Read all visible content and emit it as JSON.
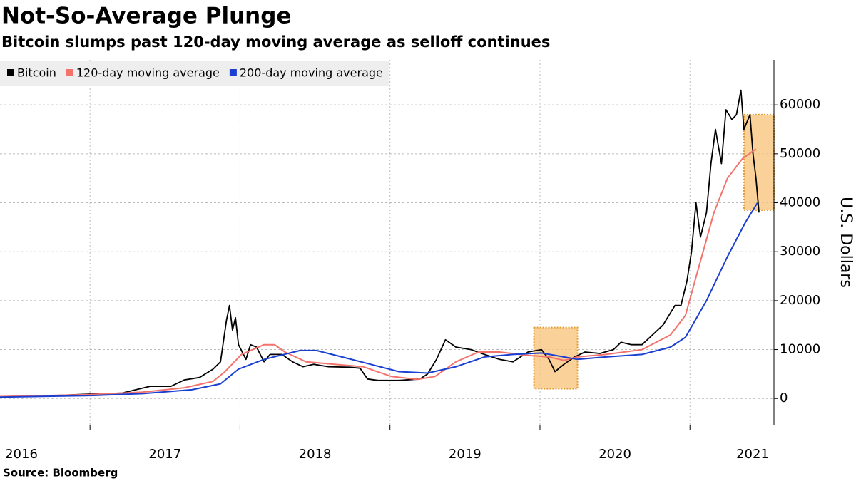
{
  "chart_data": {
    "type": "line",
    "title": "Not-So-Average Plunge",
    "subtitle": "Bitcoin slumps past 120-day moving average as selloff continues",
    "y_label": "U.S. Dollars",
    "source": "Source: Bloomberg",
    "xlim": [
      2016.4,
      2021.56
    ],
    "xticks": [
      2016,
      2017,
      2018,
      2019,
      2020,
      2021
    ],
    "ylim": [
      -5500,
      69200
    ],
    "yticks": [
      0,
      10000,
      20000,
      30000,
      40000,
      50000,
      60000
    ],
    "grid": true,
    "legend": "top-left",
    "highlights": [
      {
        "x": [
          2019.96,
          2020.25
        ],
        "y": [
          2000,
          14500
        ]
      },
      {
        "x": [
          2021.36,
          2021.56
        ],
        "y": [
          38500,
          58000
        ]
      }
    ],
    "highlight_color": "#f9c77f",
    "series": [
      {
        "name": "Bitcoin",
        "color": "#000000",
        "x": [
          2016.4,
          2016.68,
          2017.0,
          2017.21,
          2017.4,
          2017.54,
          2017.63,
          2017.73,
          2017.82,
          2017.87,
          2017.91,
          2017.93,
          2017.95,
          2017.97,
          2017.99,
          2018.04,
          2018.07,
          2018.11,
          2018.16,
          2018.2,
          2018.28,
          2018.35,
          2018.42,
          2018.49,
          2018.59,
          2018.73,
          2018.8,
          2018.85,
          2018.92,
          2019.06,
          2019.2,
          2019.25,
          2019.31,
          2019.37,
          2019.44,
          2019.54,
          2019.63,
          2019.73,
          2019.82,
          2019.92,
          2020.01,
          2020.06,
          2020.1,
          2020.16,
          2020.23,
          2020.3,
          2020.4,
          2020.49,
          2020.54,
          2020.61,
          2020.68,
          2020.75,
          2020.82,
          2020.9,
          2020.94,
          2020.98,
          2021.01,
          2021.04,
          2021.07,
          2021.11,
          2021.14,
          2021.17,
          2021.21,
          2021.24,
          2021.28,
          2021.31,
          2021.34,
          2021.36,
          2021.4,
          2021.42,
          2021.44,
          2021.46
        ],
        "values": [
          400,
          500,
          900,
          1100,
          2500,
          2500,
          3800,
          4300,
          6000,
          7500,
          16000,
          19000,
          14000,
          16500,
          11000,
          8000,
          11000,
          10500,
          7500,
          9000,
          9000,
          7500,
          6500,
          7000,
          6500,
          6400,
          6200,
          4000,
          3700,
          3700,
          4000,
          5000,
          8000,
          12000,
          10500,
          10000,
          9000,
          8000,
          7500,
          9500,
          10000,
          8000,
          5500,
          7000,
          8500,
          9500,
          9200,
          10000,
          11500,
          11000,
          11000,
          13000,
          15000,
          19000,
          19000,
          24000,
          30000,
          40000,
          33000,
          38000,
          48000,
          55000,
          48000,
          59000,
          57000,
          58000,
          63000,
          55000,
          58000,
          50000,
          45000,
          38000
        ]
      },
      {
        "name": "120-day moving average",
        "color": "#f4726c",
        "x": [
          2016.4,
          2017.0,
          2017.35,
          2017.63,
          2017.82,
          2017.9,
          2018.01,
          2018.16,
          2018.23,
          2018.3,
          2018.44,
          2018.63,
          2018.82,
          2019.01,
          2019.18,
          2019.3,
          2019.44,
          2019.59,
          2019.73,
          2019.92,
          2020.06,
          2020.16,
          2020.25,
          2020.44,
          2020.68,
          2020.87,
          2020.97,
          2021.06,
          2021.16,
          2021.25,
          2021.35,
          2021.44
        ],
        "values": [
          400,
          800,
          1300,
          2200,
          3500,
          5500,
          9000,
          11000,
          11000,
          9500,
          7500,
          7000,
          6500,
          4500,
          3900,
          4500,
          7500,
          9500,
          9500,
          8800,
          8500,
          7800,
          8500,
          9000,
          10000,
          13000,
          17000,
          27000,
          38000,
          45000,
          49000,
          51000
        ]
      },
      {
        "name": "200-day moving average",
        "color": "#1a3fd1",
        "x": [
          2016.4,
          2017.0,
          2017.35,
          2017.68,
          2017.87,
          2017.99,
          2018.16,
          2018.4,
          2018.51,
          2018.68,
          2018.87,
          2019.06,
          2019.25,
          2019.44,
          2019.63,
          2019.82,
          2020.01,
          2020.16,
          2020.25,
          2020.44,
          2020.68,
          2020.87,
          2020.97,
          2021.11,
          2021.25,
          2021.37,
          2021.45
        ],
        "values": [
          300,
          600,
          1000,
          1800,
          3000,
          6000,
          8000,
          9800,
          9800,
          8500,
          7000,
          5500,
          5200,
          6500,
          8500,
          9000,
          9300,
          8500,
          8000,
          8500,
          9000,
          10500,
          12500,
          20000,
          29000,
          36000,
          40000
        ]
      }
    ]
  }
}
